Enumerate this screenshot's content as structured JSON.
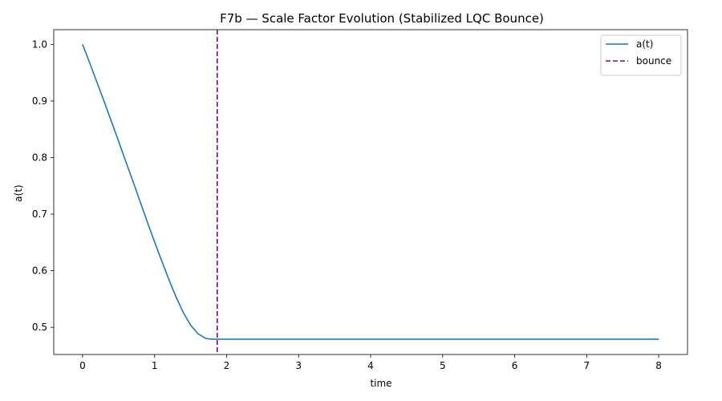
{
  "chart_data": {
    "type": "line",
    "title": "F7b — Scale Factor Evolution (Stabilized LQC Bounce)",
    "xlabel": "time",
    "ylabel": "a(t)",
    "xlim": [
      -0.4,
      8.4
    ],
    "ylim": [
      0.452,
      1.026
    ],
    "x_ticks": [
      0,
      1,
      2,
      3,
      4,
      5,
      6,
      7,
      8
    ],
    "x_tick_labels": [
      "0",
      "1",
      "2",
      "3",
      "4",
      "5",
      "6",
      "7",
      "8"
    ],
    "y_ticks": [
      0.5,
      0.6,
      0.7,
      0.8,
      0.9,
      1.0
    ],
    "y_tick_labels": [
      "0.5",
      "0.6",
      "0.7",
      "0.8",
      "0.9",
      "1.0"
    ],
    "grid": false,
    "legend_position": "top-right",
    "series": [
      {
        "name": "a(t)",
        "color": "#1f77b4",
        "style": "solid",
        "x": [
          0,
          0.1,
          0.2,
          0.3,
          0.4,
          0.5,
          0.6,
          0.7,
          0.8,
          0.9,
          1.0,
          1.1,
          1.2,
          1.3,
          1.4,
          1.5,
          1.6,
          1.7,
          1.75,
          1.8,
          1.85,
          2.0,
          3.0,
          4.0,
          5.0,
          6.0,
          7.0,
          8.0
        ],
        "y": [
          1.0,
          0.967,
          0.933,
          0.899,
          0.864,
          0.829,
          0.793,
          0.758,
          0.722,
          0.686,
          0.651,
          0.617,
          0.584,
          0.553,
          0.526,
          0.504,
          0.489,
          0.481,
          0.4795,
          0.479,
          0.479,
          0.479,
          0.479,
          0.479,
          0.479,
          0.479,
          0.479,
          0.479
        ]
      }
    ],
    "vlines": [
      {
        "name": "bounce",
        "x": 1.87,
        "color": "#800080",
        "style": "dashed"
      }
    ]
  }
}
